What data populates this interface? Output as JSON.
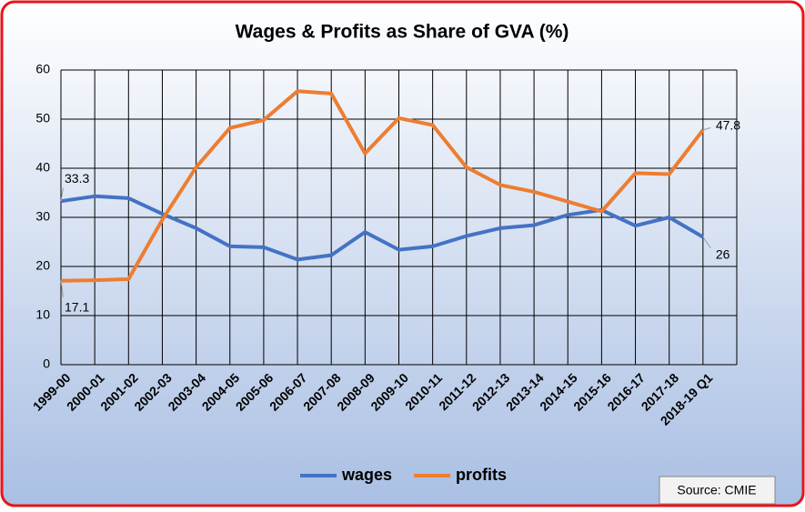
{
  "chart_data": {
    "type": "line",
    "title": "Wages & Profits as Share of GVA (%)",
    "categories": [
      "1999-00",
      "2000-01",
      "2001-02",
      "2002-03",
      "2003-04",
      "2004-05",
      "2005-06",
      "2006-07",
      "2007-08",
      "2008-09",
      "2009-10",
      "2010-11",
      "2011-12",
      "2012-13",
      "2013-14",
      "2014-15",
      "2015-16",
      "2016-17",
      "2017-18",
      "2018-19 Q1"
    ],
    "series": [
      {
        "name": "wages",
        "color": "#4472c4",
        "values": [
          33.3,
          34.3,
          33.9,
          30.7,
          27.8,
          24.1,
          23.9,
          21.4,
          22.3,
          27.0,
          23.4,
          24.1,
          26.2,
          27.8,
          28.4,
          30.5,
          31.5,
          28.3,
          30.0,
          26
        ]
      },
      {
        "name": "profits",
        "color": "#ed7d31",
        "values": [
          17.1,
          17.2,
          17.4,
          29.5,
          40.2,
          48.2,
          49.8,
          55.7,
          55.2,
          43.0,
          50.2,
          48.8,
          40.2,
          36.6,
          35.2,
          33.2,
          31.2,
          39.0,
          38.8,
          47.8
        ]
      }
    ],
    "ylim": [
      0,
      60
    ],
    "yticks": [
      0,
      10,
      20,
      30,
      40,
      50,
      60
    ],
    "grid": true,
    "legend": "bottom",
    "source": "Source: CMIE"
  }
}
